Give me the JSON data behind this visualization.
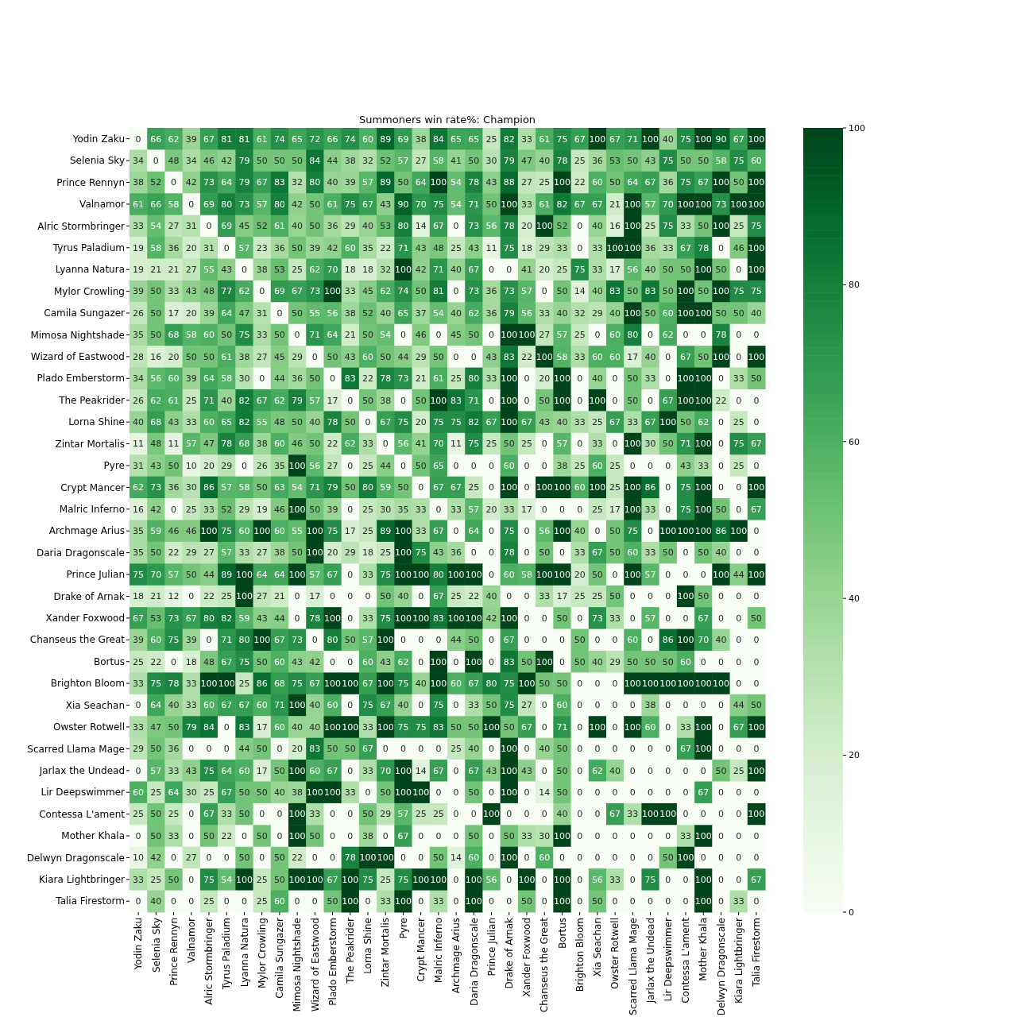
{
  "chart_data": {
    "type": "heatmap",
    "title": "Summoners win rate%: Champion",
    "categories": [
      "Yodin Zaku",
      "Selenia Sky",
      "Prince Rennyn",
      "Valnamor",
      "Alric Stormbringer",
      "Tyrus Paladium",
      "Lyanna Natura",
      "Mylor Crowling",
      "Camila Sungazer",
      "Mimosa Nightshade",
      "Wizard of Eastwood",
      "Plado Emberstorm",
      "The Peakrider",
      "Lorna Shine",
      "Zintar Mortalis",
      "Pyre",
      "Crypt Mancer",
      "Malric Inferno",
      "Archmage Arius",
      "Daria Dragonscale",
      "Prince Julian",
      "Drake of Arnak",
      "Xander Foxwood",
      "Chanseus the Great",
      "Bortus",
      "Brighton Bloom",
      "Xia Seachan",
      "Owster Rotwell",
      "Scarred Llama Mage",
      "Jarlax the Undead",
      "Lir Deepswimmer",
      "Contessa L'ament",
      "Mother Khala",
      "Delwyn Dragonscale",
      "Kiara Lightbringer",
      "Talia Firestorm"
    ],
    "y_categories": [
      "Yodin Zaku",
      "Selenia Sky",
      "Prince Rennyn",
      "Valnamor",
      "Alric Stormbringer",
      "Tyrus Paladium",
      "Lyanna Natura",
      "Mylor Crowling",
      "Camila Sungazer",
      "Mimosa Nightshade",
      "Wizard of Eastwood",
      "Plado Emberstorm",
      "The Peakrider",
      "Lorna Shine",
      "Zintar Mortalis",
      "Pyre",
      "Crypt Mancer",
      "Malric Inferno",
      "Archmage Arius",
      "Daria Dragonscale",
      "Prince Julian",
      "Drake of Arnak",
      "Xander Foxwood",
      "Chanseus the Great",
      "Bortus",
      "Brighton Bloom",
      "Xia Seachan",
      "Owster Rotwell",
      "Scarred Llama Mage",
      "Jarlax the Undead",
      "Lir Deepswimmer",
      "Contessa L'ament",
      "Mother Khala",
      "Delwyn Dragonscale",
      "Kiara Lightbringer",
      "Talia Firestorm"
    ],
    "cells": [
      [
        0,
        66,
        62,
        39,
        67,
        81,
        81,
        61,
        74,
        65,
        72,
        66,
        74,
        60,
        89,
        69,
        38,
        84,
        65,
        65,
        25,
        82,
        33,
        61,
        75,
        67,
        100,
        67,
        71,
        100,
        40,
        75,
        100,
        90,
        67,
        100
      ],
      [
        34,
        0,
        48,
        34,
        46,
        42,
        79,
        50,
        50,
        50,
        84,
        44,
        38,
        32,
        52,
        57,
        27,
        58,
        41,
        50,
        30,
        79,
        47,
        40,
        78,
        25,
        36,
        53,
        50,
        43,
        75,
        50,
        50,
        58,
        75,
        60
      ],
      [
        38,
        52,
        0,
        42,
        73,
        64,
        79,
        67,
        83,
        32,
        80,
        40,
        39,
        57,
        89,
        50,
        64,
        100,
        54,
        78,
        43,
        88,
        27,
        25,
        100,
        22,
        60,
        50,
        64,
        67,
        36,
        75,
        67,
        100,
        50,
        100
      ],
      [
        61,
        66,
        58,
        0,
        69,
        80,
        73,
        57,
        80,
        42,
        50,
        61,
        75,
        67,
        43,
        90,
        70,
        75,
        54,
        71,
        50,
        100,
        33,
        61,
        82,
        67,
        67,
        21,
        100,
        57,
        70,
        100,
        100,
        73,
        100,
        100
      ],
      [
        33,
        54,
        27,
        31,
        0,
        69,
        45,
        52,
        61,
        40,
        50,
        36,
        29,
        40,
        53,
        80,
        14,
        67,
        0,
        73,
        56,
        78,
        20,
        100,
        52,
        0,
        40,
        16,
        100,
        25,
        75,
        33,
        50,
        100,
        25,
        75
      ],
      [
        19,
        58,
        36,
        20,
        31,
        0,
        57,
        23,
        36,
        50,
        39,
        42,
        60,
        35,
        22,
        71,
        43,
        48,
        25,
        43,
        11,
        75,
        18,
        29,
        33,
        0,
        33,
        100,
        100,
        36,
        33,
        67,
        78,
        0,
        46,
        100
      ],
      [
        19,
        21,
        21,
        27,
        55,
        43,
        0,
        38,
        53,
        25,
        62,
        70,
        18,
        18,
        32,
        100,
        42,
        71,
        40,
        67,
        0,
        0,
        41,
        20,
        25,
        75,
        33,
        17,
        56,
        40,
        50,
        50,
        100,
        50,
        0,
        100
      ],
      [
        39,
        50,
        33,
        43,
        48,
        77,
        62,
        0,
        69,
        67,
        73,
        100,
        33,
        45,
        62,
        74,
        50,
        81,
        0,
        73,
        36,
        73,
        57,
        0,
        50,
        14,
        40,
        83,
        50,
        83,
        50,
        100,
        50,
        100,
        75,
        75
      ],
      [
        26,
        50,
        17,
        20,
        39,
        64,
        47,
        31,
        0,
        50,
        55,
        56,
        38,
        52,
        40,
        65,
        37,
        54,
        40,
        62,
        36,
        79,
        56,
        33,
        40,
        32,
        29,
        40,
        100,
        50,
        60,
        100,
        100,
        50,
        50,
        40
      ],
      [
        35,
        50,
        68,
        58,
        60,
        50,
        75,
        33,
        50,
        0,
        71,
        64,
        21,
        50,
        54,
        0,
        46,
        0,
        45,
        50,
        0,
        100,
        100,
        27,
        57,
        25,
        0,
        60,
        80,
        0,
        62,
        0,
        0,
        78,
        0,
        0
      ],
      [
        28,
        16,
        20,
        50,
        50,
        61,
        38,
        27,
        45,
        29,
        0,
        50,
        43,
        60,
        50,
        44,
        29,
        50,
        0,
        0,
        43,
        83,
        22,
        100,
        58,
        33,
        60,
        60,
        17,
        40,
        0,
        67,
        50,
        100,
        0,
        100
      ],
      [
        34,
        56,
        60,
        39,
        64,
        58,
        30,
        0,
        44,
        36,
        50,
        0,
        83,
        22,
        78,
        73,
        21,
        61,
        25,
        80,
        33,
        100,
        0,
        20,
        100,
        0,
        40,
        0,
        50,
        33,
        0,
        100,
        100,
        0,
        33,
        50
      ],
      [
        26,
        62,
        61,
        25,
        71,
        40,
        82,
        67,
        62,
        79,
        57,
        17,
        0,
        50,
        38,
        0,
        50,
        100,
        83,
        71,
        0,
        100,
        0,
        50,
        100,
        0,
        100,
        0,
        50,
        0,
        67,
        100,
        100,
        22,
        0,
        0
      ],
      [
        40,
        68,
        43,
        33,
        60,
        65,
        82,
        55,
        48,
        50,
        40,
        78,
        50,
        0,
        67,
        75,
        20,
        75,
        75,
        82,
        67,
        100,
        67,
        43,
        40,
        33,
        25,
        67,
        33,
        67,
        100,
        50,
        62,
        0,
        25,
        0
      ],
      [
        11,
        48,
        11,
        57,
        47,
        78,
        68,
        38,
        60,
        46,
        50,
        22,
        62,
        33,
        0,
        56,
        41,
        70,
        11,
        75,
        25,
        50,
        25,
        0,
        57,
        0,
        33,
        0,
        100,
        30,
        50,
        71,
        100,
        0,
        75,
        67
      ],
      [
        31,
        43,
        50,
        10,
        20,
        29,
        0,
        26,
        35,
        100,
        56,
        27,
        0,
        25,
        44,
        0,
        50,
        65,
        0,
        0,
        0,
        60,
        0,
        0,
        38,
        25,
        60,
        25,
        0,
        0,
        0,
        43,
        33,
        0,
        25,
        0
      ],
      [
        62,
        73,
        36,
        30,
        86,
        57,
        58,
        50,
        63,
        54,
        71,
        79,
        50,
        80,
        59,
        50,
        0,
        67,
        67,
        25,
        0,
        100,
        0,
        100,
        100,
        60,
        100,
        25,
        100,
        86,
        0,
        75,
        100,
        0,
        0,
        100
      ],
      [
        16,
        42,
        0,
        25,
        33,
        52,
        29,
        19,
        46,
        100,
        50,
        39,
        0,
        25,
        30,
        35,
        33,
        0,
        33,
        57,
        20,
        33,
        17,
        0,
        0,
        0,
        25,
        17,
        100,
        33,
        0,
        75,
        100,
        50,
        0,
        67
      ],
      [
        35,
        59,
        46,
        46,
        100,
        75,
        60,
        100,
        60,
        55,
        100,
        75,
        17,
        25,
        89,
        100,
        33,
        67,
        0,
        64,
        0,
        75,
        0,
        56,
        100,
        40,
        0,
        50,
        75,
        0,
        100,
        100,
        100,
        86,
        100,
        0
      ],
      [
        35,
        50,
        22,
        29,
        27,
        57,
        33,
        27,
        38,
        50,
        100,
        20,
        29,
        18,
        25,
        100,
        75,
        43,
        36,
        0,
        0,
        78,
        0,
        50,
        0,
        33,
        67,
        50,
        60,
        33,
        50,
        0,
        50,
        40,
        0,
        0
      ],
      [
        75,
        70,
        57,
        50,
        44,
        89,
        100,
        64,
        64,
        100,
        57,
        67,
        0,
        33,
        75,
        100,
        100,
        80,
        100,
        100,
        0,
        60,
        58,
        100,
        100,
        20,
        50,
        0,
        100,
        57,
        0,
        0,
        0,
        100,
        44,
        100
      ],
      [
        18,
        21,
        12,
        0,
        22,
        25,
        100,
        27,
        21,
        0,
        17,
        0,
        0,
        0,
        50,
        40,
        0,
        67,
        25,
        22,
        40,
        0,
        0,
        33,
        17,
        25,
        25,
        50,
        0,
        0,
        0,
        100,
        50,
        0,
        0,
        0
      ],
      [
        67,
        53,
        73,
        67,
        80,
        82,
        59,
        43,
        44,
        0,
        78,
        100,
        0,
        33,
        75,
        100,
        100,
        83,
        100,
        100,
        42,
        100,
        0,
        0,
        50,
        0,
        73,
        33,
        0,
        57,
        0,
        0,
        67,
        0,
        0,
        50
      ],
      [
        39,
        60,
        75,
        39,
        0,
        71,
        80,
        100,
        67,
        73,
        0,
        80,
        50,
        57,
        100,
        0,
        0,
        0,
        44,
        50,
        0,
        67,
        0,
        0,
        0,
        50,
        0,
        0,
        60,
        0,
        86,
        100,
        70,
        40,
        0,
        0
      ],
      [
        25,
        22,
        0,
        18,
        48,
        67,
        75,
        50,
        60,
        43,
        42,
        0,
        0,
        60,
        43,
        62,
        0,
        100,
        0,
        100,
        0,
        83,
        50,
        100,
        0,
        50,
        40,
        29,
        50,
        50,
        50,
        60,
        0,
        0,
        0,
        0
      ],
      [
        33,
        75,
        78,
        33,
        100,
        100,
        25,
        86,
        68,
        75,
        67,
        100,
        100,
        67,
        100,
        75,
        40,
        100,
        60,
        67,
        80,
        75,
        100,
        50,
        50,
        0,
        0,
        0,
        100,
        100,
        100,
        100,
        100,
        100,
        0,
        0
      ],
      [
        0,
        64,
        40,
        33,
        60,
        67,
        67,
        60,
        71,
        100,
        40,
        60,
        0,
        75,
        67,
        40,
        0,
        75,
        0,
        33,
        50,
        75,
        27,
        0,
        60,
        0,
        0,
        0,
        0,
        38,
        0,
        0,
        0,
        0,
        44,
        50
      ],
      [
        33,
        47,
        50,
        79,
        84,
        0,
        83,
        17,
        60,
        40,
        40,
        100,
        100,
        33,
        100,
        75,
        75,
        83,
        50,
        50,
        100,
        50,
        67,
        0,
        71,
        0,
        100,
        0,
        100,
        60,
        0,
        33,
        100,
        0,
        67,
        100
      ],
      [
        29,
        50,
        36,
        0,
        0,
        0,
        44,
        50,
        0,
        20,
        83,
        50,
        50,
        67,
        0,
        0,
        0,
        0,
        25,
        40,
        0,
        100,
        0,
        40,
        50,
        0,
        0,
        0,
        0,
        0,
        0,
        67,
        100,
        0,
        0,
        0
      ],
      [
        0,
        57,
        33,
        43,
        75,
        64,
        60,
        17,
        50,
        100,
        60,
        67,
        0,
        33,
        70,
        100,
        14,
        67,
        0,
        67,
        43,
        100,
        43,
        0,
        50,
        0,
        62,
        40,
        0,
        0,
        0,
        0,
        0,
        50,
        25,
        100
      ],
      [
        60,
        25,
        64,
        30,
        25,
        67,
        50,
        50,
        40,
        38,
        100,
        100,
        33,
        0,
        50,
        100,
        100,
        0,
        0,
        50,
        0,
        100,
        0,
        14,
        50,
        0,
        0,
        0,
        0,
        0,
        0,
        0,
        67,
        0,
        0,
        0
      ],
      [
        25,
        50,
        25,
        0,
        67,
        33,
        50,
        0,
        0,
        100,
        33,
        0,
        0,
        50,
        29,
        57,
        25,
        25,
        0,
        0,
        100,
        0,
        0,
        0,
        40,
        0,
        0,
        67,
        33,
        100,
        100,
        0,
        0,
        0,
        0,
        100
      ],
      [
        0,
        50,
        33,
        0,
        50,
        22,
        0,
        50,
        0,
        100,
        50,
        0,
        0,
        38,
        0,
        67,
        0,
        0,
        0,
        50,
        0,
        50,
        33,
        30,
        100,
        0,
        0,
        0,
        0,
        0,
        0,
        33,
        100,
        0,
        0,
        0
      ],
      [
        10,
        42,
        0,
        27,
        0,
        0,
        50,
        0,
        50,
        22,
        0,
        0,
        78,
        100,
        100,
        0,
        0,
        50,
        14,
        60,
        0,
        100,
        0,
        60,
        0,
        0,
        0,
        0,
        0,
        0,
        50,
        100,
        0,
        0,
        0,
        0
      ],
      [
        33,
        25,
        50,
        0,
        75,
        54,
        100,
        25,
        50,
        100,
        100,
        67,
        100,
        75,
        25,
        75,
        100,
        100,
        0,
        100,
        56,
        0,
        100,
        0,
        100,
        0,
        56,
        33,
        0,
        75,
        0,
        0,
        100,
        0,
        0,
        67
      ],
      [
        0,
        40,
        0,
        0,
        25,
        0,
        0,
        25,
        60,
        0,
        0,
        50,
        100,
        0,
        33,
        100,
        0,
        33,
        0,
        100,
        0,
        0,
        50,
        0,
        100,
        0,
        50,
        0,
        0,
        0,
        0,
        0,
        100,
        0,
        33,
        0
      ]
    ],
    "clim": [
      0,
      100
    ],
    "cticks": [
      0,
      20,
      40,
      60,
      80,
      100
    ],
    "data_labels": true
  }
}
